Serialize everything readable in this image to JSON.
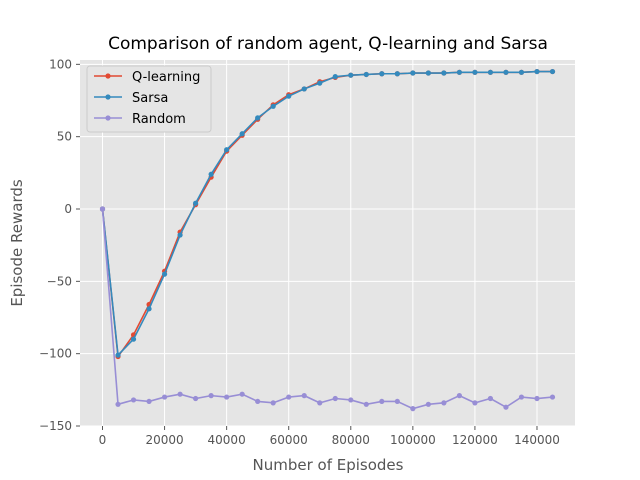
{
  "chart_data": {
    "type": "line",
    "title": "Comparison of random agent, Q-learning and Sarsa",
    "xlabel": "Number of Episodes",
    "ylabel": "Episode Rewards",
    "xlim": [
      -7250,
      152250
    ],
    "ylim": [
      -150,
      103
    ],
    "xticks": [
      0,
      20000,
      40000,
      60000,
      80000,
      100000,
      120000,
      140000
    ],
    "xtick_labels": [
      "0",
      "20000",
      "40000",
      "60000",
      "80000",
      "100000",
      "120000",
      "140000"
    ],
    "yticks": [
      -150,
      -100,
      -50,
      0,
      50,
      100
    ],
    "ytick_labels": [
      "−150",
      "−100",
      "−50",
      "0",
      "50",
      "100"
    ],
    "grid": true,
    "legend_position": "top-left",
    "x": [
      0,
      5000,
      10000,
      15000,
      20000,
      25000,
      30000,
      35000,
      40000,
      45000,
      50000,
      55000,
      60000,
      65000,
      70000,
      75000,
      80000,
      85000,
      90000,
      95000,
      100000,
      105000,
      110000,
      115000,
      120000,
      125000,
      130000,
      135000,
      140000,
      145000
    ],
    "series": [
      {
        "name": "Q-learning",
        "color": "#e24a33",
        "values": [
          0,
          -102,
          -87,
          -66,
          -43,
          -16,
          3,
          22,
          40,
          51,
          62,
          72,
          79,
          83,
          88,
          91,
          92.5,
          93,
          93.5,
          93.5,
          94,
          94,
          94,
          94.5,
          94.5,
          94.5,
          94.5,
          94.5,
          95,
          95
        ]
      },
      {
        "name": "Sarsa",
        "color": "#348abd",
        "values": [
          0,
          -101,
          -90,
          -69,
          -45,
          -18,
          4,
          24,
          41,
          52,
          63,
          71,
          78,
          83,
          87,
          91.5,
          92.5,
          93,
          93.5,
          93.5,
          94,
          94,
          94,
          94.5,
          94.5,
          94.5,
          94.5,
          94.5,
          95,
          95
        ]
      },
      {
        "name": "Random",
        "color": "#988ed5",
        "values": [
          0,
          -135,
          -132,
          -133,
          -130,
          -128,
          -131,
          -129,
          -130,
          -128,
          -133,
          -134,
          -130,
          -129,
          -134,
          -131,
          -132,
          -135,
          -133,
          -133,
          -138,
          -135,
          -134,
          -129,
          -134,
          -131,
          -137,
          -130,
          -131,
          -130
        ]
      }
    ]
  }
}
